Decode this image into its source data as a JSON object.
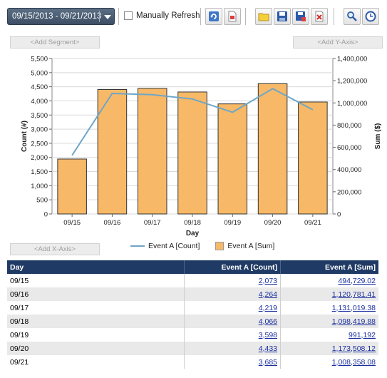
{
  "toolbar": {
    "date_range": "09/15/2013 - 09/21/2013",
    "manual_refresh_label": "Manually Refresh",
    "manual_refresh_checked": false
  },
  "segment_bar": {
    "add_segment": "<Add Segment>",
    "add_y_axis": "<Add Y-Axis>",
    "add_x_axis": "<Add X-Axis>"
  },
  "colors": {
    "bar_fill": "#f7b967",
    "line": "#6ea6c8",
    "header_bg": "#1f3a64"
  },
  "chart_data": {
    "type": "bar",
    "categories": [
      "09/15",
      "09/16",
      "09/17",
      "09/18",
      "09/19",
      "09/20",
      "09/21"
    ],
    "xlabel": "Day",
    "ylabel_left": "Count (#)",
    "ylabel_right": "Sum ($)",
    "left_ticks": [
      "0",
      "500",
      "1,000",
      "1,500",
      "2,000",
      "2,500",
      "3,000",
      "3,500",
      "4,000",
      "4,500",
      "5,000",
      "5,500"
    ],
    "right_ticks": [
      "0",
      "200,000",
      "400,000",
      "600,000",
      "800,000",
      "1,000,000",
      "1,200,000",
      "1,400,000"
    ],
    "ylim_left": [
      0,
      5500
    ],
    "ylim_right": [
      0,
      1400000
    ],
    "grid": true,
    "legend_position": "bottom",
    "series": [
      {
        "name": "Event A [Count]",
        "type": "line",
        "axis": "left",
        "values": [
          2073,
          4264,
          4219,
          4066,
          3598,
          4433,
          3685
        ]
      },
      {
        "name": "Event A [Sum]",
        "type": "bar",
        "axis": "right",
        "values": [
          494729.02,
          1120781.41,
          1131019.38,
          1098419.88,
          991192,
          1173508.12,
          1008358.08
        ]
      }
    ]
  },
  "table": {
    "headers": [
      "Day",
      "Event A [Count]",
      "Event A [Sum]"
    ],
    "rows": [
      [
        "09/15",
        "2,073",
        "494,729.02"
      ],
      [
        "09/16",
        "4,264",
        "1,120,781.41"
      ],
      [
        "09/17",
        "4,219",
        "1,131,019.38"
      ],
      [
        "09/18",
        "4,066",
        "1,098,419.88"
      ],
      [
        "09/19",
        "3,598",
        "991,192"
      ],
      [
        "09/20",
        "4,433",
        "1,173,508.12"
      ],
      [
        "09/21",
        "3,685",
        "1,008,358.08"
      ]
    ]
  }
}
